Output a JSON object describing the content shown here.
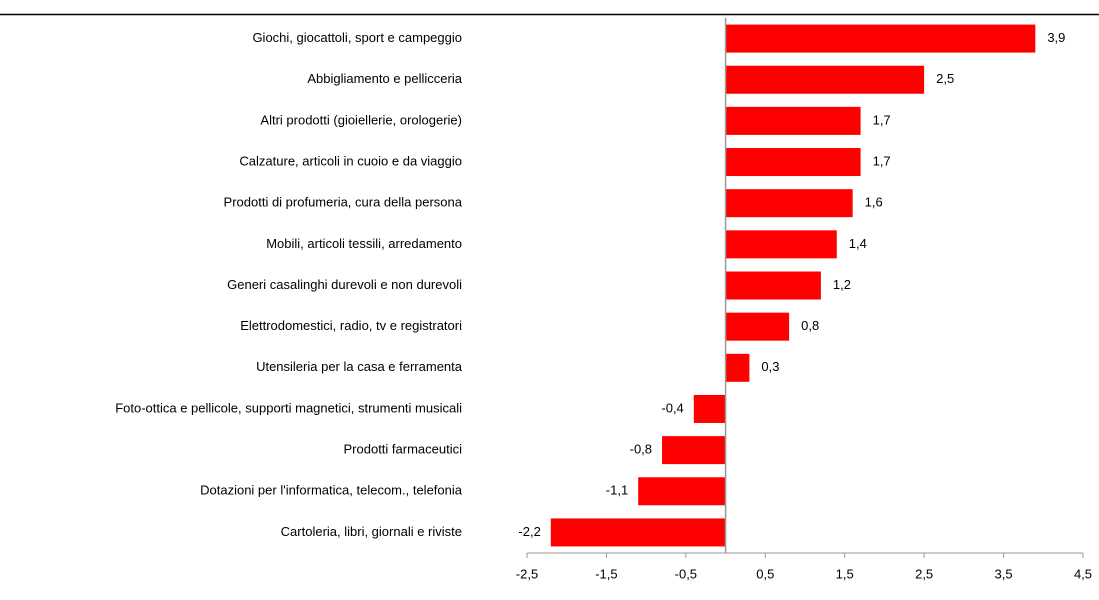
{
  "chart_data": {
    "type": "hbar",
    "categories": [
      "Giochi, giocattoli, sport e campeggio",
      "Abbigliamento e pellicceria",
      "Altri prodotti (gioiellerie, orologerie)",
      "Calzature, articoli in cuoio e da viaggio",
      "Prodotti di profumeria, cura della persona",
      "Mobili, articoli tessili, arredamento",
      "Generi casalinghi durevoli e non durevoli",
      "Elettrodomestici, radio, tv e registratori",
      "Utensileria per la casa e ferramenta",
      "Foto-ottica e pellicole, supporti magnetici, strumenti  musicali",
      "Prodotti farmaceutici",
      "Dotazioni per l'informatica, telecom., telefonia",
      "Cartoleria, libri, giornali e riviste"
    ],
    "values": [
      3.9,
      2.5,
      1.7,
      1.7,
      1.6,
      1.4,
      1.2,
      0.8,
      0.3,
      -0.4,
      -0.8,
      -1.1,
      -2.2
    ],
    "value_labels": [
      "3,9",
      "2,5",
      "1,7",
      "1,7",
      "1,6",
      "1,4",
      "1,2",
      "0,8",
      "0,3",
      "-0,4",
      "-0,8",
      "-1,1",
      "-2,2"
    ],
    "color": "#ff0000",
    "xlim": [
      -2.5,
      4.5
    ],
    "xticks": [
      {
        "value": -2.5,
        "label": "-2,5"
      },
      {
        "value": -1.5,
        "label": "-1,5"
      },
      {
        "value": -0.5,
        "label": "-0,5"
      },
      {
        "value": 0.5,
        "label": "0,5"
      },
      {
        "value": 1.5,
        "label": "1,5"
      },
      {
        "value": 2.5,
        "label": "2,5"
      },
      {
        "value": 3.5,
        "label": "3,5"
      },
      {
        "value": 4.5,
        "label": "4,5"
      }
    ]
  }
}
